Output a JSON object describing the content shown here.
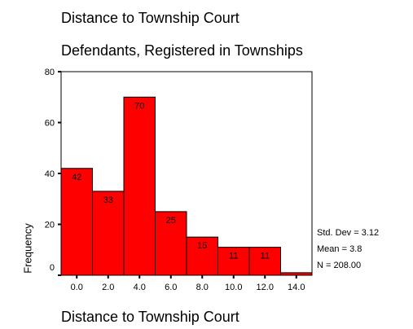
{
  "chart_data": {
    "type": "bar",
    "title": "Distance to Township Court",
    "subtitle": "Defendants, Registered in Townships",
    "xlabel": "Distance to Township Court",
    "ylabel": "Frequency",
    "categories": [
      "0.0",
      "2.0",
      "4.0",
      "6.0",
      "8.0",
      "10.0",
      "12.0",
      "14.0"
    ],
    "values": [
      42,
      33,
      70,
      25,
      15,
      11,
      11,
      1
    ],
    "value_labels": [
      "42",
      "33",
      "70",
      "25",
      "15",
      "11",
      "11",
      ""
    ],
    "ylim": [
      0,
      80
    ],
    "yticks": [
      "0",
      "20",
      "40",
      "60",
      "80"
    ],
    "bar_color": "#ff0000",
    "grid": false,
    "stats": {
      "std_label": "Std. Dev = ",
      "std_value": "3.12",
      "mean_label": "Mean = ",
      "mean_value": "3.8",
      "n_label": "N = ",
      "n_value": "208.00"
    }
  }
}
